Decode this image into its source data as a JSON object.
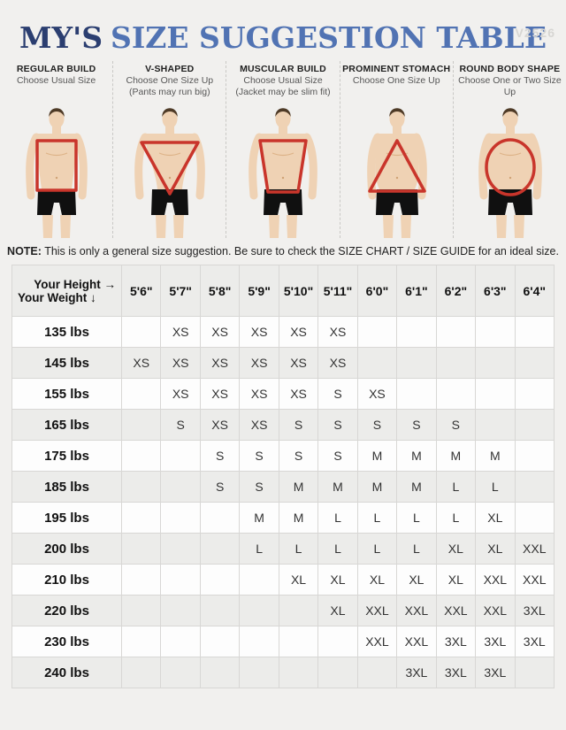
{
  "version_label": "V2526",
  "title": {
    "brand": "MY'S",
    "rest": "SIZE SUGGESTION TABLE"
  },
  "colors": {
    "accent_red": "#c9352b",
    "title_dark_blue": "#2b3e70",
    "title_blue": "#5173b3",
    "row_stripe": "#ececea",
    "skin": "#efd2b4",
    "hair": "#4e3a26",
    "shorts": "#101010"
  },
  "body_types": [
    {
      "name": "REGULAR BUILD",
      "subtitle_lines": [
        "Choose Usual Size"
      ],
      "overlay_shape": "rectangle"
    },
    {
      "name": "V-SHAPED",
      "subtitle_lines": [
        "Choose One Size Up",
        "(Pants may run big)"
      ],
      "overlay_shape": "inverted-triangle"
    },
    {
      "name": "MUSCULAR BUILD",
      "subtitle_lines": [
        "Choose Usual Size",
        "(Jacket may be slim fit)"
      ],
      "overlay_shape": "trapezoid"
    },
    {
      "name": "PROMINENT STOMACH",
      "subtitle_lines": [
        "Choose One Size Up"
      ],
      "overlay_shape": "triangle"
    },
    {
      "name": "ROUND BODY SHAPE",
      "subtitle_lines": [
        "Choose One or Two Size Up"
      ],
      "overlay_shape": "oval"
    }
  ],
  "note": {
    "label": "NOTE:",
    "text": "This is only a general size suggestion. Be sure to check the SIZE CHART / SIZE GUIDE for an ideal size."
  },
  "size_table": {
    "corner": {
      "line1": "Your Height →",
      "line2": "Your Weight ↓"
    },
    "heights": [
      "5'6\"",
      "5'7\"",
      "5'8\"",
      "5'9\"",
      "5'10\"",
      "5'11\"",
      "6'0\"",
      "6'1\"",
      "6'2\"",
      "6'3\"",
      "6'4\""
    ],
    "rows": [
      {
        "weight": "135 lbs",
        "sizes": [
          "",
          "XS",
          "XS",
          "XS",
          "XS",
          "XS",
          "",
          "",
          "",
          "",
          ""
        ]
      },
      {
        "weight": "145 lbs",
        "sizes": [
          "XS",
          "XS",
          "XS",
          "XS",
          "XS",
          "XS",
          "",
          "",
          "",
          "",
          ""
        ]
      },
      {
        "weight": "155 lbs",
        "sizes": [
          "",
          "XS",
          "XS",
          "XS",
          "XS",
          "S",
          "XS",
          "",
          "",
          "",
          ""
        ]
      },
      {
        "weight": "165 lbs",
        "sizes": [
          "",
          "S",
          "XS",
          "XS",
          "S",
          "S",
          "S",
          "S",
          "S",
          "",
          ""
        ]
      },
      {
        "weight": "175 lbs",
        "sizes": [
          "",
          "",
          "S",
          "S",
          "S",
          "S",
          "M",
          "M",
          "M",
          "M",
          ""
        ]
      },
      {
        "weight": "185 lbs",
        "sizes": [
          "",
          "",
          "S",
          "S",
          "M",
          "M",
          "M",
          "M",
          "L",
          "L",
          ""
        ]
      },
      {
        "weight": "195 lbs",
        "sizes": [
          "",
          "",
          "",
          "M",
          "M",
          "L",
          "L",
          "L",
          "L",
          "XL",
          ""
        ]
      },
      {
        "weight": "200 lbs",
        "sizes": [
          "",
          "",
          "",
          "L",
          "L",
          "L",
          "L",
          "L",
          "XL",
          "XL",
          "XXL"
        ]
      },
      {
        "weight": "210 lbs",
        "sizes": [
          "",
          "",
          "",
          "",
          "XL",
          "XL",
          "XL",
          "XL",
          "XL",
          "XXL",
          "XXL"
        ]
      },
      {
        "weight": "220 lbs",
        "sizes": [
          "",
          "",
          "",
          "",
          "",
          "XL",
          "XXL",
          "XXL",
          "XXL",
          "XXL",
          "3XL"
        ]
      },
      {
        "weight": "230 lbs",
        "sizes": [
          "",
          "",
          "",
          "",
          "",
          "",
          "XXL",
          "XXL",
          "3XL",
          "3XL",
          "3XL"
        ]
      },
      {
        "weight": "240 lbs",
        "sizes": [
          "",
          "",
          "",
          "",
          "",
          "",
          "",
          "3XL",
          "3XL",
          "3XL",
          ""
        ]
      }
    ]
  },
  "chart_data": {
    "type": "table",
    "title": "MY'S SIZE SUGGESTION TABLE",
    "x_axis_label": "Your Height",
    "y_axis_label": "Your Weight",
    "columns": [
      "5'6\"",
      "5'7\"",
      "5'8\"",
      "5'9\"",
      "5'10\"",
      "5'11\"",
      "6'0\"",
      "6'1\"",
      "6'2\"",
      "6'3\"",
      "6'4\""
    ],
    "row_labels": [
      "135 lbs",
      "145 lbs",
      "155 lbs",
      "165 lbs",
      "175 lbs",
      "185 lbs",
      "195 lbs",
      "200 lbs",
      "210 lbs",
      "220 lbs",
      "230 lbs",
      "240 lbs"
    ],
    "cells": [
      [
        "",
        "XS",
        "XS",
        "XS",
        "XS",
        "XS",
        "",
        "",
        "",
        "",
        ""
      ],
      [
        "XS",
        "XS",
        "XS",
        "XS",
        "XS",
        "XS",
        "",
        "",
        "",
        "",
        ""
      ],
      [
        "",
        "XS",
        "XS",
        "XS",
        "XS",
        "S",
        "XS",
        "",
        "",
        "",
        ""
      ],
      [
        "",
        "S",
        "XS",
        "XS",
        "S",
        "S",
        "S",
        "S",
        "S",
        "",
        ""
      ],
      [
        "",
        "",
        "S",
        "S",
        "S",
        "S",
        "M",
        "M",
        "M",
        "M",
        ""
      ],
      [
        "",
        "",
        "S",
        "S",
        "M",
        "M",
        "M",
        "M",
        "L",
        "L",
        ""
      ],
      [
        "",
        "",
        "",
        "M",
        "M",
        "L",
        "L",
        "L",
        "L",
        "XL",
        ""
      ],
      [
        "",
        "",
        "",
        "L",
        "L",
        "L",
        "L",
        "L",
        "XL",
        "XL",
        "XXL"
      ],
      [
        "",
        "",
        "",
        "",
        "XL",
        "XL",
        "XL",
        "XL",
        "XL",
        "XXL",
        "XXL"
      ],
      [
        "",
        "",
        "",
        "",
        "",
        "XL",
        "XXL",
        "XXL",
        "XXL",
        "XXL",
        "3XL"
      ],
      [
        "",
        "",
        "",
        "",
        "",
        "",
        "XXL",
        "XXL",
        "3XL",
        "3XL",
        "3XL"
      ],
      [
        "",
        "",
        "",
        "",
        "",
        "",
        "",
        "3XL",
        "3XL",
        "3XL",
        ""
      ]
    ]
  }
}
